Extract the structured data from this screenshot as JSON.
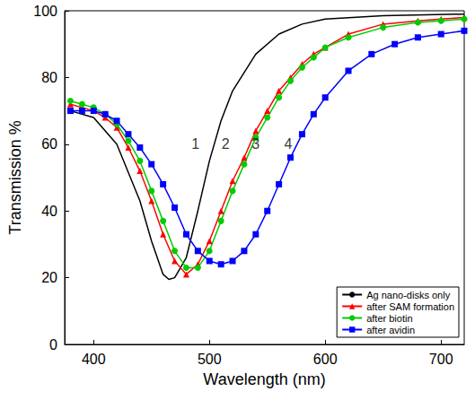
{
  "chart_data": {
    "type": "line",
    "x_label": "Wavelength (nm)",
    "y_label": "Transmission %",
    "xlim": [
      375,
      720
    ],
    "xticks": [
      400,
      500,
      600,
      700
    ],
    "ylim": [
      0,
      100
    ],
    "yticks": [
      0,
      20,
      40,
      60,
      80,
      100
    ],
    "grid": false,
    "legend": "lower right",
    "series": [
      {
        "name": "Ag nano-disks only",
        "color": "#000000",
        "marker": "none",
        "line_style": "solid",
        "x": [
          380,
          400,
          420,
          440,
          450,
          460,
          465,
          470,
          480,
          490,
          500,
          510,
          520,
          540,
          560,
          580,
          600,
          650,
          720
        ],
        "values": [
          70,
          68,
          60,
          43,
          31,
          21,
          19.5,
          20,
          26,
          40,
          55,
          67,
          76,
          87,
          93,
          96,
          97.5,
          98.5,
          99
        ]
      },
      {
        "name": "after SAM formation",
        "color": "#ff0000",
        "marker": "triangle",
        "line_style": "solid",
        "x": [
          380,
          390,
          400,
          410,
          420,
          430,
          440,
          450,
          460,
          470,
          480,
          490,
          500,
          510,
          520,
          530,
          540,
          550,
          560,
          570,
          580,
          590,
          600,
          620,
          650,
          680,
          700,
          720
        ],
        "values": [
          72,
          71,
          70,
          68,
          65,
          59,
          52,
          43,
          33,
          25,
          21,
          24,
          31,
          40,
          49,
          56,
          64,
          70,
          76,
          80,
          84,
          87,
          89,
          93,
          96,
          97,
          97.5,
          98
        ]
      },
      {
        "name": "after biotin",
        "color": "#00cc00",
        "marker": "circle",
        "line_style": "solid",
        "x": [
          380,
          390,
          400,
          410,
          420,
          430,
          440,
          450,
          460,
          470,
          480,
          490,
          500,
          510,
          520,
          530,
          540,
          550,
          560,
          570,
          580,
          590,
          600,
          620,
          650,
          680,
          700,
          720
        ],
        "values": [
          73,
          72,
          71,
          69,
          66,
          61,
          55,
          46,
          37,
          28,
          23,
          23,
          28,
          37,
          46,
          54,
          62,
          68,
          74,
          79,
          83,
          86,
          89,
          92,
          95,
          96.5,
          97,
          97.5
        ]
      },
      {
        "name": "after avidin",
        "color": "#0000ff",
        "marker": "square",
        "line_style": "solid",
        "x": [
          380,
          390,
          400,
          410,
          420,
          430,
          440,
          450,
          460,
          470,
          480,
          490,
          500,
          510,
          520,
          530,
          540,
          550,
          560,
          570,
          580,
          590,
          600,
          620,
          640,
          660,
          680,
          700,
          720
        ],
        "values": [
          70,
          70,
          70,
          69,
          67,
          63,
          59,
          54,
          48,
          41,
          33,
          28,
          25,
          24,
          25,
          28,
          33,
          40,
          48,
          56,
          63,
          69,
          74,
          82,
          87,
          90,
          92,
          93,
          94
        ]
      }
    ],
    "annotations": [
      {
        "text": "1",
        "x": 488,
        "y": 60
      },
      {
        "text": "2",
        "x": 514,
        "y": 60
      },
      {
        "text": "3",
        "x": 540,
        "y": 60
      },
      {
        "text": "4",
        "x": 568,
        "y": 60
      }
    ]
  }
}
